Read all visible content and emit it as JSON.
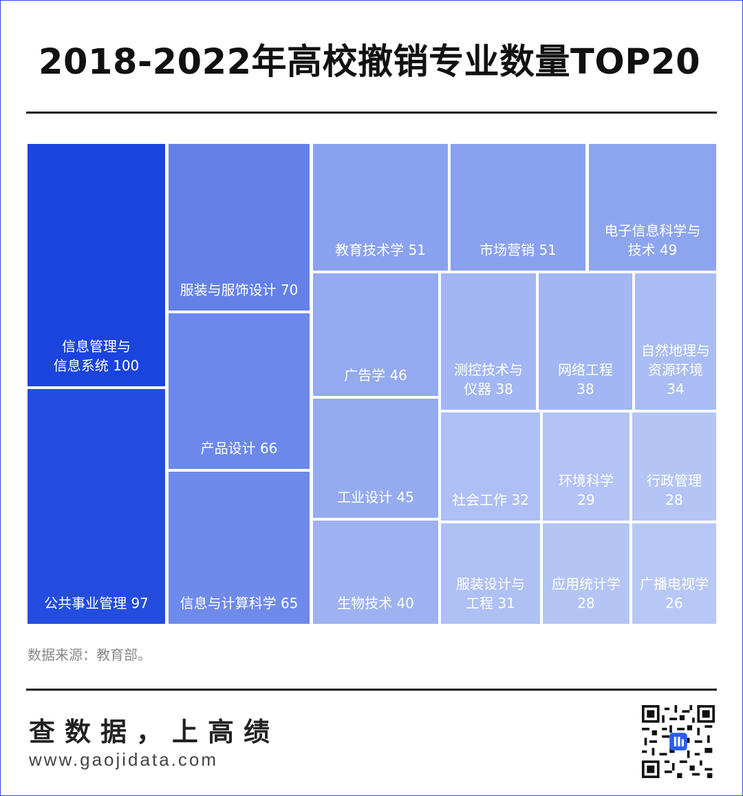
{
  "title": "2018-2022年高校撤销专业数量TOP20",
  "source": "数据来源：教育部。",
  "footer": {
    "brand": "查数据，上高绩",
    "url": "www.gaojidata.com"
  },
  "colors": {
    "darkest": "#1a44dd",
    "lightest": "#b8c8f6",
    "title": "#111111"
  },
  "chart_data": {
    "type": "treemap",
    "title": "2018-2022年高校撤销专业数量TOP20",
    "items": [
      {
        "name": "信息管理与\n信息系统",
        "value": 100
      },
      {
        "name": "公共事业管理",
        "value": 97
      },
      {
        "name": "服装与服饰设计",
        "value": 70
      },
      {
        "name": "产品设计",
        "value": 66
      },
      {
        "name": "信息与计算科学",
        "value": 65
      },
      {
        "name": "教育技术学",
        "value": 51
      },
      {
        "name": "市场营销",
        "value": 51
      },
      {
        "name": "电子信息科学与\n技术",
        "value": 49
      },
      {
        "name": "广告学",
        "value": 46
      },
      {
        "name": "工业设计",
        "value": 45
      },
      {
        "name": "生物技术",
        "value": 40
      },
      {
        "name": "测控技术与\n仪器",
        "value": 38
      },
      {
        "name": "网络工程\n",
        "value": 38
      },
      {
        "name": "自然地理与\n资源环境\n",
        "value": 34
      },
      {
        "name": "社会工作",
        "value": 32
      },
      {
        "name": "环境科学\n",
        "value": 29
      },
      {
        "name": "行政管理\n",
        "value": 28
      },
      {
        "name": "服装设计与\n工程",
        "value": 31
      },
      {
        "name": "应用统计学\n",
        "value": 28
      },
      {
        "name": "广播电视学\n",
        "value": 26
      }
    ]
  }
}
